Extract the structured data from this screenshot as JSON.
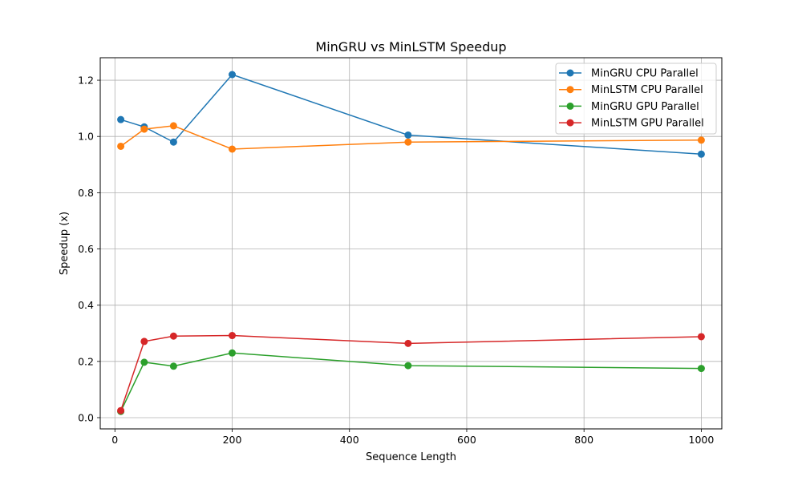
{
  "chart_data": {
    "type": "line",
    "title": "MinGRU vs MinLSTM Speedup",
    "xlabel": "Sequence Length",
    "ylabel": "Speedup (x)",
    "x": [
      10,
      50,
      100,
      200,
      500,
      1000
    ],
    "xlim": [
      -25,
      1035
    ],
    "ylim": [
      -0.04,
      1.28
    ],
    "xticks": [
      0,
      200,
      400,
      600,
      800,
      1000
    ],
    "yticks": [
      0.0,
      0.2,
      0.4,
      0.6,
      0.8,
      1.0,
      1.2
    ],
    "xtick_labels": [
      "0",
      "200",
      "400",
      "600",
      "800",
      "1000"
    ],
    "ytick_labels": [
      "0.0",
      "0.2",
      "0.4",
      "0.6",
      "0.8",
      "1.0",
      "1.2"
    ],
    "grid": true,
    "legend_position": "top-right",
    "series": [
      {
        "name": "MinGRU CPU Parallel",
        "color": "#1f77b4",
        "values": [
          1.06,
          1.034,
          0.98,
          1.22,
          1.005,
          0.937
        ]
      },
      {
        "name": "MinLSTM CPU Parallel",
        "color": "#ff7f0e",
        "values": [
          0.965,
          1.026,
          1.038,
          0.955,
          0.98,
          0.987
        ]
      },
      {
        "name": "MinGRU GPU Parallel",
        "color": "#2ca02c",
        "values": [
          0.022,
          0.197,
          0.183,
          0.23,
          0.185,
          0.175
        ]
      },
      {
        "name": "MinLSTM GPU Parallel",
        "color": "#d62728",
        "values": [
          0.025,
          0.271,
          0.29,
          0.292,
          0.264,
          0.288
        ]
      }
    ]
  }
}
